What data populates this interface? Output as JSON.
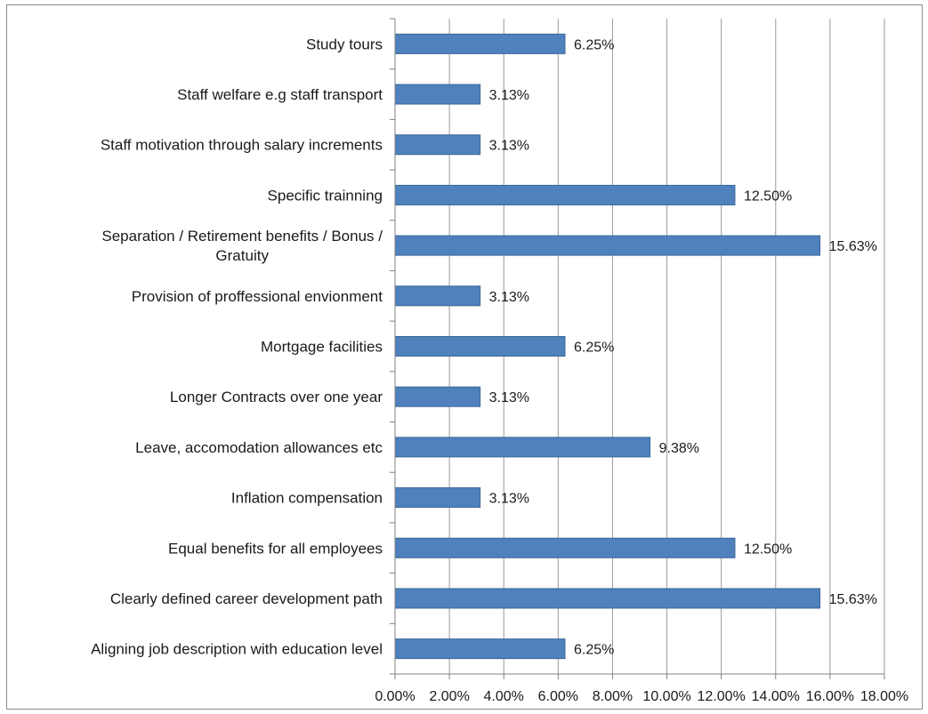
{
  "chart_data": {
    "type": "bar",
    "orientation": "horizontal",
    "categories": [
      [
        "Study tours"
      ],
      [
        "Staff welfare e.g staff transport"
      ],
      [
        "Staff motivation through salary increments"
      ],
      [
        "Specific trainning"
      ],
      [
        "Separation / Retirement benefits / Bonus /",
        "Gratuity"
      ],
      [
        "Provision of proffessional envionment"
      ],
      [
        "Mortgage facilities"
      ],
      [
        "Longer Contracts over one year"
      ],
      [
        "Leave, accomodation allowances etc"
      ],
      [
        "Inflation compensation"
      ],
      [
        "Equal benefits for all employees"
      ],
      [
        "Clearly defined career development path"
      ],
      [
        "Aligning job description with education level"
      ]
    ],
    "values": [
      6.25,
      3.13,
      3.13,
      12.5,
      15.63,
      3.13,
      6.25,
      3.13,
      9.38,
      3.13,
      12.5,
      15.63,
      6.25
    ],
    "value_labels": [
      "6.25%",
      "3.13%",
      "3.13%",
      "12.50%",
      "15.63%",
      "3.13%",
      "6.25%",
      "3.13%",
      "9.38%",
      "3.13%",
      "12.50%",
      "15.63%",
      "6.25%"
    ],
    "x_ticks": [
      0,
      2,
      4,
      6,
      8,
      10,
      12,
      14,
      16,
      18
    ],
    "x_tick_labels": [
      "0.00%",
      "2.00%",
      "4.00%",
      "6.00%",
      "8.00%",
      "10.00%",
      "12.00%",
      "14.00%",
      "16.00%",
      "18.00%"
    ],
    "xlim": [
      0,
      18
    ],
    "grid": "vertical",
    "legend": "none",
    "bar_color": "#4f81bd",
    "bar_edge_color": "#3a6699",
    "grid_color": "#9a9a9a",
    "axis_color": "#808080"
  }
}
